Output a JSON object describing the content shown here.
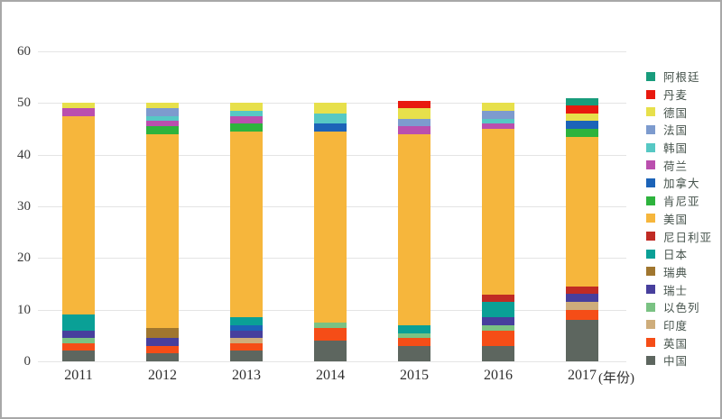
{
  "colors": {
    "background": "#ffffff",
    "frame_border": "#a8a8a8",
    "grid": "#e4e4e4",
    "axis_text": "#3a3a3a",
    "legend_text": "#47544d"
  },
  "chart_data": {
    "type": "bar",
    "stacked": true,
    "title": "",
    "xlabel": "(年份)",
    "ylabel": "",
    "ylim": [
      0,
      60
    ],
    "yticks": [
      0,
      10,
      20,
      30,
      40,
      50,
      60
    ],
    "grid": true,
    "legend_position": "right",
    "categories": [
      "2011",
      "2012",
      "2013",
      "2014",
      "2015",
      "2016",
      "2017"
    ],
    "legend": [
      {
        "name": "阿根廷",
        "color": "#189c7c"
      },
      {
        "name": "丹麦",
        "color": "#e8190f"
      },
      {
        "name": "德国",
        "color": "#e7e04b"
      },
      {
        "name": "法国",
        "color": "#7d9bce"
      },
      {
        "name": "韩国",
        "color": "#56c8c4"
      },
      {
        "name": "荷兰",
        "color": "#ba4fae"
      },
      {
        "name": "加拿大",
        "color": "#1c63b8"
      },
      {
        "name": "肯尼亚",
        "color": "#2db33d"
      },
      {
        "name": "美国",
        "color": "#f6b63c"
      },
      {
        "name": "尼日利亚",
        "color": "#c02b24"
      },
      {
        "name": "日本",
        "color": "#0aa096"
      },
      {
        "name": "瑞典",
        "color": "#a0762f"
      },
      {
        "name": "瑞士",
        "color": "#473f9d"
      },
      {
        "name": "以色列",
        "color": "#7ac283"
      },
      {
        "name": "印度",
        "color": "#cead7b"
      },
      {
        "name": "英国",
        "color": "#f54d17"
      },
      {
        "name": "中国",
        "color": "#5d665f"
      }
    ],
    "series": [
      {
        "name": "阿根廷",
        "values": [
          0,
          0,
          0,
          0,
          0,
          0,
          1.5
        ]
      },
      {
        "name": "丹麦",
        "values": [
          0,
          0,
          0,
          0,
          1.5,
          0,
          1.5
        ]
      },
      {
        "name": "德国",
        "values": [
          1,
          1,
          1.5,
          2,
          2,
          1.5,
          1.5
        ]
      },
      {
        "name": "法国",
        "values": [
          0,
          1.5,
          0,
          0,
          1.5,
          1.5,
          0
        ]
      },
      {
        "name": "韩国",
        "values": [
          0,
          1,
          1,
          2,
          0,
          1,
          0
        ]
      },
      {
        "name": "荷兰",
        "values": [
          1.5,
          1,
          1.5,
          0,
          1.5,
          1,
          0
        ]
      },
      {
        "name": "加拿大",
        "values": [
          0,
          0,
          1,
          1.5,
          0,
          0,
          1.5
        ]
      },
      {
        "name": "肯尼亚",
        "values": [
          0,
          1.5,
          1.5,
          0,
          0,
          0,
          1.5
        ]
      },
      {
        "name": "美国",
        "values": [
          38.5,
          37.5,
          36,
          37,
          37,
          32,
          29
        ]
      },
      {
        "name": "尼日利亚",
        "values": [
          0,
          0,
          0,
          0,
          0,
          1.5,
          1.5
        ]
      },
      {
        "name": "日本",
        "values": [
          3,
          0,
          1.5,
          0,
          1.5,
          3,
          0
        ]
      },
      {
        "name": "瑞典",
        "values": [
          0,
          2,
          0,
          0,
          0,
          0,
          0
        ]
      },
      {
        "name": "瑞士",
        "values": [
          1.5,
          1.5,
          1.5,
          0,
          0,
          1.5,
          1.5
        ]
      },
      {
        "name": "以色列",
        "values": [
          1,
          0,
          0,
          1,
          1,
          1,
          0
        ]
      },
      {
        "name": "印度",
        "values": [
          0,
          0,
          1,
          0,
          0,
          0,
          1.5
        ]
      },
      {
        "name": "英国",
        "values": [
          1.5,
          1.5,
          1.5,
          2.5,
          1.5,
          3,
          2
        ]
      },
      {
        "name": "中国",
        "values": [
          2,
          1.5,
          2,
          4,
          3,
          3,
          8
        ]
      }
    ],
    "stacks": {
      "2011": [
        [
          "中国",
          2
        ],
        [
          "英国",
          1.5
        ],
        [
          "以色列",
          1
        ],
        [
          "瑞士",
          1.5
        ],
        [
          "日本",
          3
        ],
        [
          "美国",
          38.5
        ],
        [
          "荷兰",
          1.5
        ],
        [
          "德国",
          1
        ]
      ],
      "2012": [
        [
          "中国",
          1.5
        ],
        [
          "英国",
          1.5
        ],
        [
          "瑞士",
          1.5
        ],
        [
          "瑞典",
          2
        ],
        [
          "美国",
          37.5
        ],
        [
          "肯尼亚",
          1.5
        ],
        [
          "荷兰",
          1
        ],
        [
          "韩国",
          1
        ],
        [
          "法国",
          1.5
        ],
        [
          "德国",
          1
        ]
      ],
      "2013": [
        [
          "中国",
          2
        ],
        [
          "英国",
          1.5
        ],
        [
          "印度",
          1
        ],
        [
          "瑞士",
          1.5
        ],
        [
          "加拿大",
          1
        ],
        [
          "日本",
          1.5
        ],
        [
          "美国",
          36
        ],
        [
          "肯尼亚",
          1.5
        ],
        [
          "荷兰",
          1.5
        ],
        [
          "韩国",
          1
        ],
        [
          "德国",
          1.5
        ]
      ],
      "2014": [
        [
          "中国",
          4
        ],
        [
          "英国",
          2.5
        ],
        [
          "以色列",
          1
        ],
        [
          "美国",
          37
        ],
        [
          "加拿大",
          1.5
        ],
        [
          "韩国",
          2
        ],
        [
          "德国",
          2
        ]
      ],
      "2015": [
        [
          "中国",
          3
        ],
        [
          "英国",
          1.5
        ],
        [
          "以色列",
          1
        ],
        [
          "日本",
          1.5
        ],
        [
          "美国",
          37
        ],
        [
          "荷兰",
          1.5
        ],
        [
          "法国",
          1.5
        ],
        [
          "德国",
          2
        ],
        [
          "丹麦",
          1.5
        ]
      ],
      "2016": [
        [
          "中国",
          3
        ],
        [
          "英国",
          3
        ],
        [
          "以色列",
          1
        ],
        [
          "瑞士",
          1.5
        ],
        [
          "日本",
          3
        ],
        [
          "尼日利亚",
          1.5
        ],
        [
          "美国",
          32
        ],
        [
          "荷兰",
          1
        ],
        [
          "韩国",
          1
        ],
        [
          "法国",
          1.5
        ],
        [
          "德国",
          1.5
        ]
      ],
      "2017": [
        [
          "中国",
          8
        ],
        [
          "英国",
          2
        ],
        [
          "印度",
          1.5
        ],
        [
          "瑞士",
          1.5
        ],
        [
          "尼日利亚",
          1.5
        ],
        [
          "美国",
          29
        ],
        [
          "肯尼亚",
          1.5
        ],
        [
          "加拿大",
          1.5
        ],
        [
          "德国",
          1.5
        ],
        [
          "丹麦",
          1.5
        ],
        [
          "阿根廷",
          1.5
        ]
      ]
    }
  }
}
